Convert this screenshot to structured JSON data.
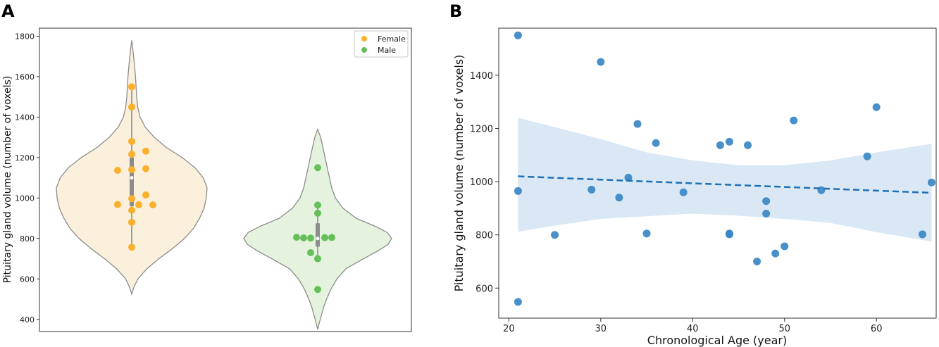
{
  "figure": {
    "colors": {
      "female": "#fbb02d",
      "male": "#66c05a",
      "female_violin": "#faf0dc",
      "male_violin": "#e4f2de",
      "violin_edge": "#8c8c8c",
      "box": "#8c8c8c",
      "scatter": "#3a87c4",
      "regression": "#1f6fb5",
      "ci_band": "#d4e4f3"
    }
  },
  "chart_data": [
    {
      "panel": "A",
      "type": "violin",
      "xlabel": "",
      "ylabel": "Pituitary gland volume (number of voxels)",
      "ylim": [
        340,
        1840
      ],
      "yticks": [
        400,
        600,
        800,
        1000,
        1200,
        1400,
        1600,
        1800
      ],
      "legend": {
        "position": "top-right",
        "entries": [
          "Female",
          "Male"
        ]
      },
      "groups": [
        {
          "name": "Female",
          "kde_range": [
            525,
            1780
          ],
          "kde": [
            [
              525,
              0.0
            ],
            [
              560,
              0.03
            ],
            [
              600,
              0.08
            ],
            [
              650,
              0.2
            ],
            [
              700,
              0.36
            ],
            [
              750,
              0.54
            ],
            [
              800,
              0.7
            ],
            [
              850,
              0.82
            ],
            [
              900,
              0.9
            ],
            [
              950,
              0.96
            ],
            [
              1000,
              0.99
            ],
            [
              1050,
              1.0
            ],
            [
              1100,
              0.95
            ],
            [
              1150,
              0.84
            ],
            [
              1200,
              0.67
            ],
            [
              1250,
              0.46
            ],
            [
              1300,
              0.3
            ],
            [
              1350,
              0.18
            ],
            [
              1400,
              0.11
            ],
            [
              1450,
              0.08
            ],
            [
              1500,
              0.065
            ],
            [
              1550,
              0.058
            ],
            [
              1600,
              0.05
            ],
            [
              1650,
              0.038
            ],
            [
              1700,
              0.025
            ],
            [
              1740,
              0.013
            ],
            [
              1780,
              0.0
            ]
          ],
          "box": {
            "q1": 960,
            "median": 1100,
            "q3": 1200,
            "whisker_low": 760,
            "whisker_high": 1550
          },
          "points": [
            {
              "v": 1550,
              "dx": 0
            },
            {
              "v": 1450,
              "dx": 0
            },
            {
              "v": 1280,
              "dx": 0
            },
            {
              "v": 1232,
              "dx": 2
            },
            {
              "v": 1217,
              "dx": 0
            },
            {
              "v": 1145,
              "dx": 2
            },
            {
              "v": 1140,
              "dx": 0
            },
            {
              "v": 1137,
              "dx": -2
            },
            {
              "v": 1015,
              "dx": 2
            },
            {
              "v": 997,
              "dx": 0
            },
            {
              "v": 968,
              "dx": -2
            },
            {
              "v": 967,
              "dx": 1
            },
            {
              "v": 966,
              "dx": 3
            },
            {
              "v": 940,
              "dx": 0
            },
            {
              "v": 880,
              "dx": 0
            },
            {
              "v": 757,
              "dx": 0
            }
          ]
        },
        {
          "name": "Male",
          "kde_range": [
            350,
            1340
          ],
          "kde": [
            [
              350,
              0.0
            ],
            [
              380,
              0.02
            ],
            [
              420,
              0.05
            ],
            [
              460,
              0.08
            ],
            [
              500,
              0.12
            ],
            [
              550,
              0.18
            ],
            [
              600,
              0.26
            ],
            [
              650,
              0.38
            ],
            [
              700,
              0.62
            ],
            [
              740,
              0.82
            ],
            [
              770,
              0.95
            ],
            [
              800,
              1.0
            ],
            [
              830,
              0.94
            ],
            [
              860,
              0.78
            ],
            [
              900,
              0.52
            ],
            [
              950,
              0.34
            ],
            [
              1000,
              0.24
            ],
            [
              1050,
              0.19
            ],
            [
              1100,
              0.16
            ],
            [
              1150,
              0.13
            ],
            [
              1200,
              0.1
            ],
            [
              1250,
              0.07
            ],
            [
              1300,
              0.04
            ],
            [
              1340,
              0.0
            ]
          ],
          "box": {
            "q1": 760,
            "median": 800,
            "q3": 875,
            "whisker_low": 700,
            "whisker_high": 965
          },
          "points": [
            {
              "v": 1150,
              "dx": 0
            },
            {
              "v": 965,
              "dx": 0
            },
            {
              "v": 925,
              "dx": 0
            },
            {
              "v": 806,
              "dx": -3
            },
            {
              "v": 803,
              "dx": -2
            },
            {
              "v": 802,
              "dx": -1
            },
            {
              "v": 804,
              "dx": 1
            },
            {
              "v": 805,
              "dx": 2
            },
            {
              "v": 730,
              "dx": -1
            },
            {
              "v": 700,
              "dx": 0
            },
            {
              "v": 548,
              "dx": 0
            }
          ]
        }
      ]
    },
    {
      "panel": "B",
      "type": "scatter",
      "xlabel": "Chronological Age (year)",
      "ylabel": "Pituitary gland volume (number of voxels)",
      "xlim": [
        18.9,
        66.5
      ],
      "ylim": [
        487,
        1577
      ],
      "xticks": [
        20,
        30,
        40,
        50,
        60
      ],
      "yticks": [
        600,
        800,
        1000,
        1200,
        1400
      ],
      "points": [
        [
          21,
          1550
        ],
        [
          21,
          965
        ],
        [
          21,
          548
        ],
        [
          25,
          800
        ],
        [
          29,
          970
        ],
        [
          30,
          1450
        ],
        [
          32,
          940
        ],
        [
          33,
          1015
        ],
        [
          34,
          1217
        ],
        [
          35,
          805
        ],
        [
          36,
          1145
        ],
        [
          39,
          960
        ],
        [
          43,
          1137
        ],
        [
          44,
          1150
        ],
        [
          44,
          805
        ],
        [
          44,
          802
        ],
        [
          46,
          1137
        ],
        [
          47,
          700
        ],
        [
          48,
          927
        ],
        [
          48,
          880
        ],
        [
          49,
          730
        ],
        [
          50,
          757
        ],
        [
          51,
          1230
        ],
        [
          54,
          968
        ],
        [
          59,
          1095
        ],
        [
          60,
          1280
        ],
        [
          65,
          802
        ],
        [
          66,
          997
        ]
      ],
      "regression": {
        "x": [
          21,
          66
        ],
        "y": [
          1020,
          958
        ]
      },
      "ci_band": {
        "x": [
          21,
          25,
          30,
          35,
          40,
          45,
          50,
          55,
          60,
          66
        ],
        "upper": [
          1240,
          1205,
          1160,
          1110,
          1080,
          1062,
          1062,
          1080,
          1110,
          1142
        ],
        "lower": [
          812,
          835,
          860,
          870,
          880,
          872,
          860,
          845,
          810,
          775
        ]
      }
    }
  ]
}
